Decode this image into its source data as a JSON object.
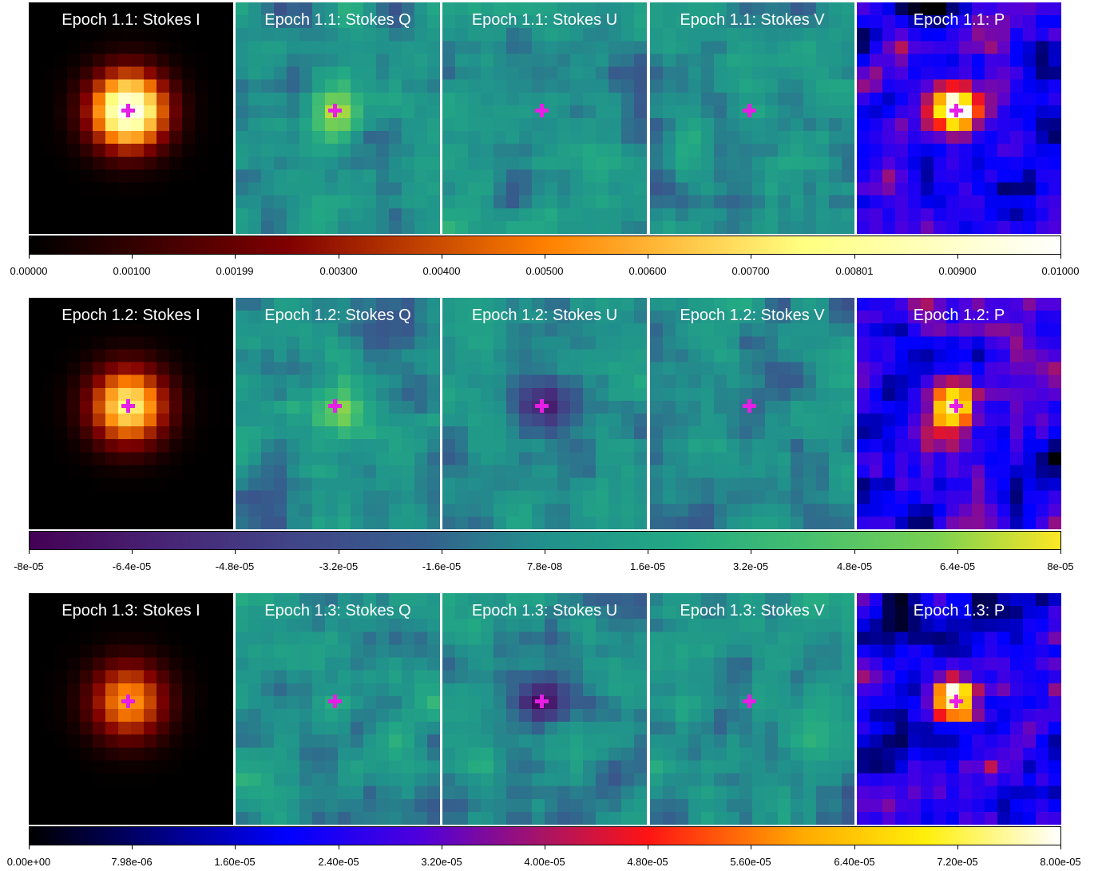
{
  "rows": [
    {
      "titles": [
        "Epoch 1.1: Stokes I",
        "Epoch 1.1: Stokes Q",
        "Epoch 1.1: Stokes U",
        "Epoch 1.1: Stokes V",
        "Epoch 1.1: P"
      ],
      "colorbar": {
        "colormap": "afmhot",
        "ticks": [
          "0.00000",
          "0.00100",
          "0.00199",
          "0.00300",
          "0.00400",
          "0.00500",
          "0.00600",
          "0.00700",
          "0.00801",
          "0.00900",
          "0.01000"
        ]
      }
    },
    {
      "titles": [
        "Epoch 1.2: Stokes I",
        "Epoch 1.2: Stokes Q",
        "Epoch 1.2: Stokes U",
        "Epoch 1.2: Stokes V",
        "Epoch 1.2: P"
      ],
      "colorbar": {
        "colormap": "viridis",
        "ticks": [
          "-8e-05",
          "-6.4e-05",
          "-4.8e-05",
          "-3.2e-05",
          "-1.6e-05",
          "7.8e-08",
          "1.6e-05",
          "3.2e-05",
          "4.8e-05",
          "6.4e-05",
          "8e-05"
        ]
      }
    },
    {
      "titles": [
        "Epoch 1.3: Stokes I",
        "Epoch 1.3: Stokes Q",
        "Epoch 1.3: Stokes U",
        "Epoch 1.3: Stokes V",
        "Epoch 1.3: P"
      ],
      "colorbar": {
        "colormap": "gnuplot2",
        "ticks": [
          "0.00e+00",
          "7.98e-06",
          "1.60e-05",
          "2.40e-05",
          "3.20e-05",
          "4.00e-05",
          "4.80e-05",
          "5.60e-05",
          "6.40e-05",
          "7.20e-05",
          "8.00e-05"
        ]
      }
    }
  ],
  "panel_colormaps": [
    "afmhot",
    "viridis",
    "viridis",
    "viridis",
    "gnuplot2"
  ],
  "marker": {
    "shape": "plus",
    "color": "#e61ee6"
  }
}
